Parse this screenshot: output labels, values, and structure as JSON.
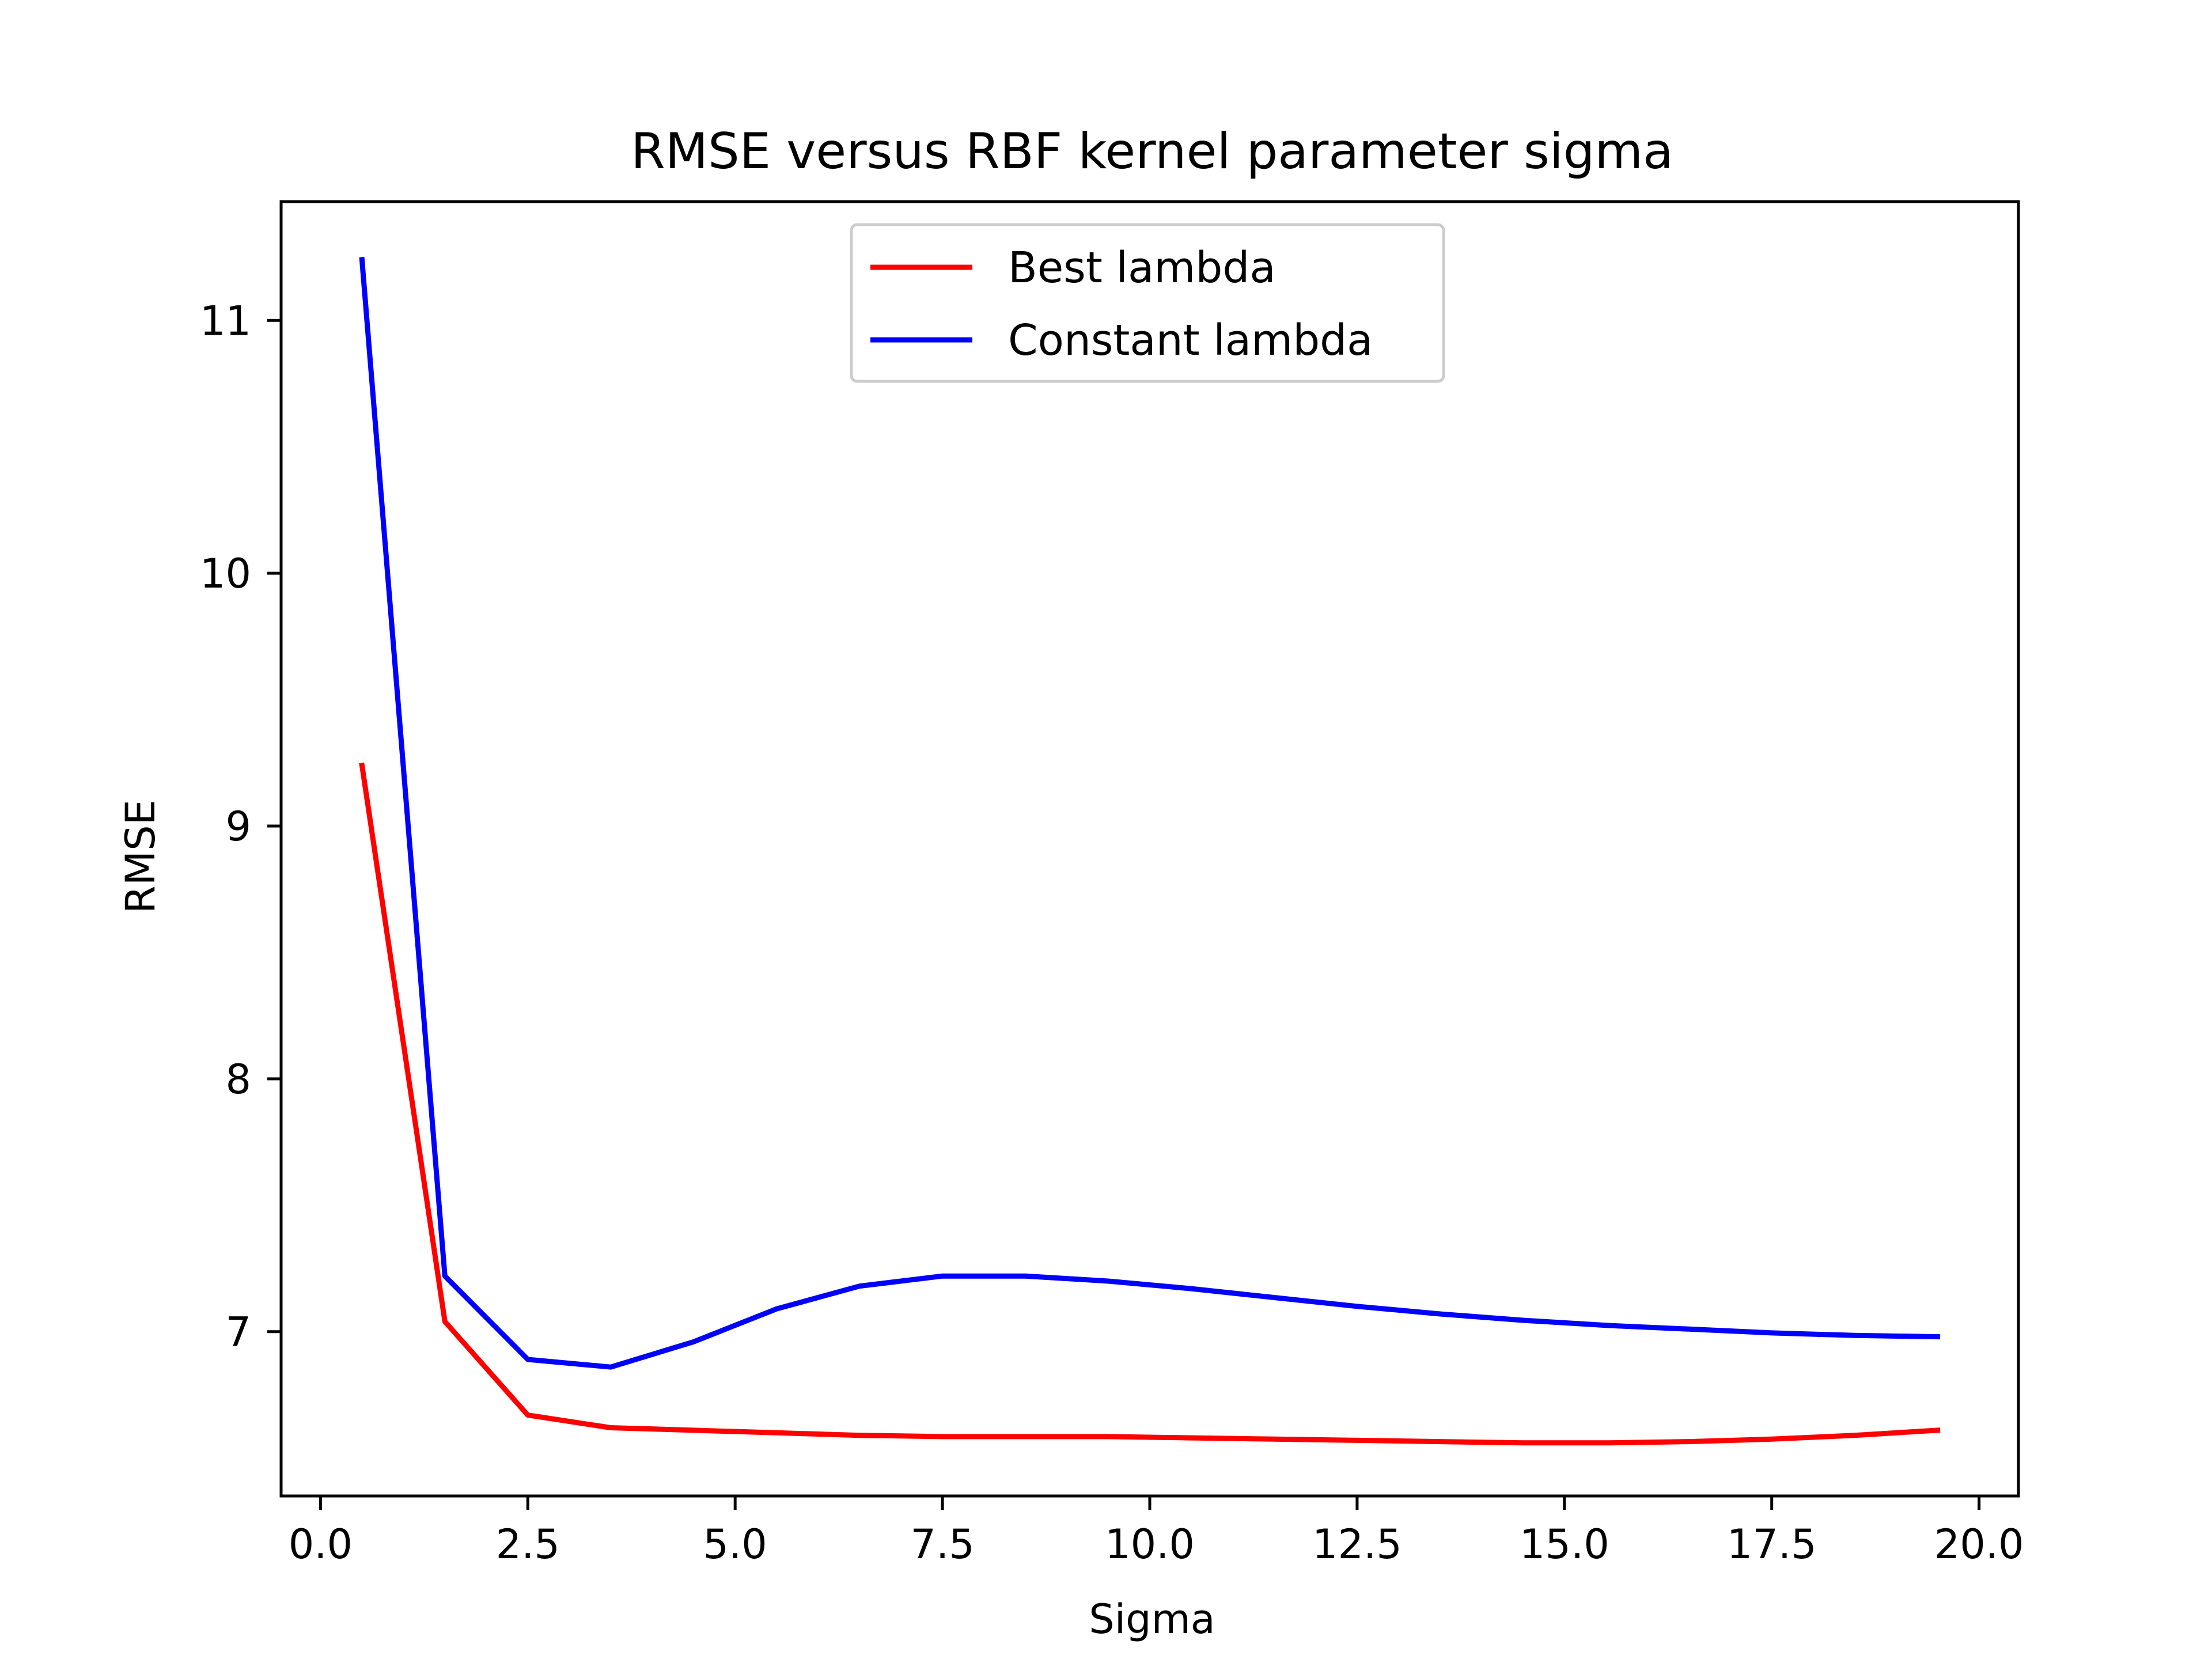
{
  "chart_data": {
    "type": "line",
    "title": "RMSE versus RBF kernel parameter sigma",
    "xlabel": "Sigma",
    "ylabel": "RMSE",
    "xlim": [
      -0.475,
      20.475
    ],
    "ylim": [
      6.35,
      11.47
    ],
    "xticks": [
      0.0,
      2.5,
      5.0,
      7.5,
      10.0,
      12.5,
      15.0,
      17.5,
      20.0
    ],
    "xtick_labels": [
      "0.0",
      "2.5",
      "5.0",
      "7.5",
      "10.0",
      "12.5",
      "15.0",
      "17.5",
      "20.0"
    ],
    "yticks": [
      7,
      8,
      9,
      10,
      11
    ],
    "ytick_labels": [
      "7",
      "8",
      "9",
      "10",
      "11"
    ],
    "grid": false,
    "legend_position": "top-center",
    "x": [
      0.5,
      1.5,
      2.5,
      3.5,
      4.5,
      5.5,
      6.5,
      7.5,
      8.5,
      9.5,
      10.5,
      11.5,
      12.5,
      13.5,
      14.5,
      15.5,
      16.5,
      17.5,
      18.5,
      19.5
    ],
    "series": [
      {
        "name": "Best lambda",
        "color": "#ff0000",
        "values": [
          9.24,
          7.04,
          6.67,
          6.62,
          6.61,
          6.6,
          6.59,
          6.585,
          6.585,
          6.585,
          6.58,
          6.575,
          6.57,
          6.565,
          6.56,
          6.56,
          6.565,
          6.575,
          6.59,
          6.61
        ]
      },
      {
        "name": "Constant lambda",
        "color": "#0000ff",
        "values": [
          11.24,
          7.22,
          6.89,
          6.86,
          6.96,
          7.09,
          7.18,
          7.22,
          7.22,
          7.2,
          7.17,
          7.135,
          7.1,
          7.07,
          7.045,
          7.025,
          7.01,
          6.995,
          6.985,
          6.98
        ]
      }
    ]
  }
}
